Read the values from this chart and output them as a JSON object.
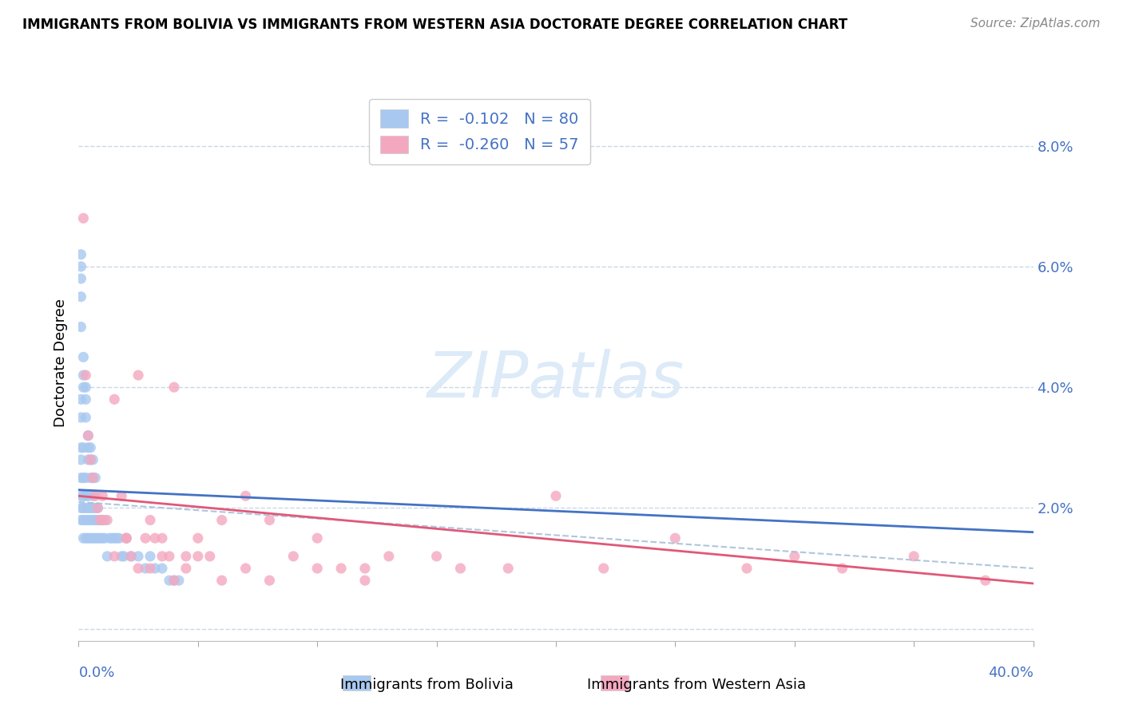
{
  "title": "IMMIGRANTS FROM BOLIVIA VS IMMIGRANTS FROM WESTERN ASIA DOCTORATE DEGREE CORRELATION CHART",
  "source": "Source: ZipAtlas.com",
  "ylabel": "Doctorate Degree",
  "xlim": [
    0.0,
    0.4
  ],
  "ylim": [
    -0.002,
    0.09
  ],
  "ytick_vals": [
    0.0,
    0.02,
    0.04,
    0.06,
    0.08
  ],
  "ytick_labels": [
    "",
    "2.0%",
    "4.0%",
    "6.0%",
    "8.0%"
  ],
  "bolivia_R": -0.102,
  "bolivia_N": 80,
  "western_asia_R": -0.26,
  "western_asia_N": 57,
  "bolivia_color": "#a8c8f0",
  "bolivia_line_color": "#4472c4",
  "western_asia_color": "#f4a8c0",
  "western_asia_line_color": "#e05878",
  "dashed_line_color": "#a8c0d8",
  "legend_text_color": "#4472c4",
  "background_color": "#ffffff",
  "grid_color": "#c8d8e8",
  "watermark_color": "#ddeaf8",
  "bolivia_scatter_x": [
    0.001,
    0.001,
    0.001,
    0.001,
    0.001,
    0.001,
    0.001,
    0.001,
    0.002,
    0.002,
    0.002,
    0.002,
    0.002,
    0.002,
    0.003,
    0.003,
    0.003,
    0.003,
    0.003,
    0.004,
    0.004,
    0.004,
    0.004,
    0.004,
    0.005,
    0.005,
    0.005,
    0.005,
    0.006,
    0.006,
    0.006,
    0.006,
    0.007,
    0.007,
    0.007,
    0.008,
    0.008,
    0.008,
    0.009,
    0.009,
    0.01,
    0.01,
    0.011,
    0.011,
    0.012,
    0.013,
    0.014,
    0.015,
    0.016,
    0.017,
    0.018,
    0.019,
    0.02,
    0.022,
    0.025,
    0.028,
    0.03,
    0.032,
    0.035,
    0.038,
    0.04,
    0.042,
    0.001,
    0.001,
    0.001,
    0.001,
    0.001,
    0.002,
    0.002,
    0.002,
    0.003,
    0.003,
    0.003,
    0.004,
    0.004,
    0.005,
    0.005,
    0.006,
    0.006,
    0.007
  ],
  "bolivia_scatter_y": [
    0.018,
    0.02,
    0.022,
    0.025,
    0.028,
    0.03,
    0.035,
    0.038,
    0.015,
    0.018,
    0.02,
    0.022,
    0.025,
    0.03,
    0.015,
    0.018,
    0.02,
    0.022,
    0.025,
    0.015,
    0.018,
    0.02,
    0.022,
    0.028,
    0.015,
    0.018,
    0.02,
    0.025,
    0.015,
    0.018,
    0.02,
    0.022,
    0.015,
    0.018,
    0.02,
    0.015,
    0.018,
    0.02,
    0.015,
    0.018,
    0.015,
    0.018,
    0.015,
    0.018,
    0.012,
    0.015,
    0.015,
    0.015,
    0.015,
    0.015,
    0.012,
    0.012,
    0.015,
    0.012,
    0.012,
    0.01,
    0.012,
    0.01,
    0.01,
    0.008,
    0.008,
    0.008,
    0.05,
    0.055,
    0.058,
    0.06,
    0.062,
    0.04,
    0.042,
    0.045,
    0.035,
    0.038,
    0.04,
    0.03,
    0.032,
    0.028,
    0.03,
    0.025,
    0.028,
    0.025
  ],
  "western_asia_scatter_x": [
    0.002,
    0.003,
    0.004,
    0.005,
    0.006,
    0.007,
    0.008,
    0.009,
    0.01,
    0.012,
    0.015,
    0.018,
    0.02,
    0.022,
    0.025,
    0.028,
    0.03,
    0.032,
    0.035,
    0.038,
    0.04,
    0.045,
    0.05,
    0.055,
    0.06,
    0.07,
    0.08,
    0.09,
    0.1,
    0.11,
    0.12,
    0.13,
    0.15,
    0.16,
    0.18,
    0.2,
    0.22,
    0.25,
    0.28,
    0.3,
    0.32,
    0.35,
    0.38,
    0.01,
    0.015,
    0.02,
    0.025,
    0.03,
    0.035,
    0.04,
    0.045,
    0.05,
    0.06,
    0.07,
    0.08,
    0.1,
    0.12
  ],
  "western_asia_scatter_y": [
    0.068,
    0.042,
    0.032,
    0.028,
    0.025,
    0.022,
    0.02,
    0.018,
    0.022,
    0.018,
    0.038,
    0.022,
    0.015,
    0.012,
    0.042,
    0.015,
    0.018,
    0.015,
    0.015,
    0.012,
    0.04,
    0.012,
    0.015,
    0.012,
    0.018,
    0.022,
    0.018,
    0.012,
    0.015,
    0.01,
    0.01,
    0.012,
    0.012,
    0.01,
    0.01,
    0.022,
    0.01,
    0.015,
    0.01,
    0.012,
    0.01,
    0.012,
    0.008,
    0.018,
    0.012,
    0.015,
    0.01,
    0.01,
    0.012,
    0.008,
    0.01,
    0.012,
    0.008,
    0.01,
    0.008,
    0.01,
    0.008
  ],
  "bolivia_trend_x0": 0.0,
  "bolivia_trend_y0": 0.023,
  "bolivia_trend_x1": 0.4,
  "bolivia_trend_y1": 0.016,
  "western_asia_trend_x0": 0.0,
  "western_asia_trend_y0": 0.022,
  "western_asia_trend_x1": 0.4,
  "western_asia_trend_y1": 0.0075,
  "dashed_trend_x0": 0.0,
  "dashed_trend_y0": 0.021,
  "dashed_trend_x1": 0.4,
  "dashed_trend_y1": 0.01
}
